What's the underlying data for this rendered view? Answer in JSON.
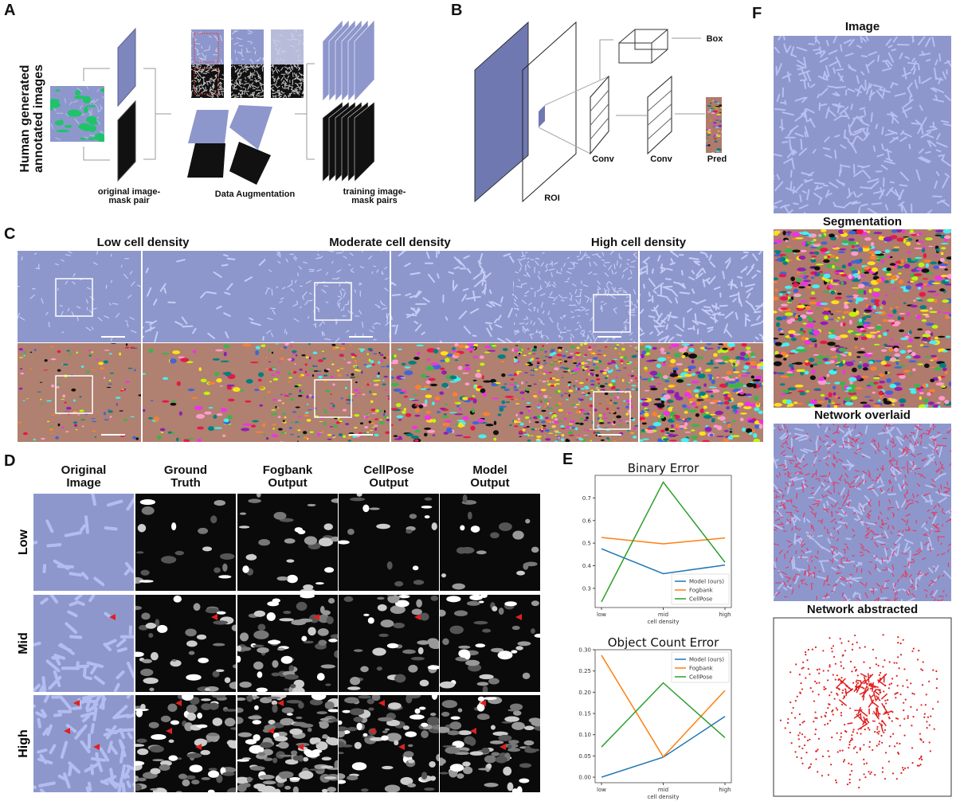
{
  "panels": {
    "A": {
      "label": "A",
      "side_title": "Human generated annotated images",
      "original": "original image-mask pair",
      "augmentation": "Data Augmentation",
      "training": "training image-mask pairs"
    },
    "B": {
      "label": "B",
      "roi": "ROI",
      "conv1": "Conv",
      "conv2": "Conv",
      "pred": "Pred",
      "box": "Box"
    },
    "C": {
      "label": "C",
      "titles": [
        "Low cell density",
        "Moderate cell density",
        "High cell density"
      ]
    },
    "D": {
      "label": "D",
      "columns": [
        "Original Image",
        "Ground Truth",
        "Fogbank Output",
        "CellPose Output",
        "Model Output"
      ],
      "rows": [
        "Low",
        "Mid",
        "High"
      ]
    },
    "E": {
      "label": "E"
    },
    "F": {
      "label": "F",
      "titles": [
        "Image",
        "Segmentation",
        "Network overlaid",
        "Network abstracted"
      ]
    }
  },
  "colors": {
    "cell_image": "#8e97cc",
    "mask_bg": "#b08070",
    "model": "#1f77b4",
    "fogbank": "#ff7f0e",
    "cellpose": "#2ca02c",
    "annotation": "#1fc46a",
    "marker": "#e02020"
  },
  "chart_data": [
    {
      "type": "line",
      "title": "Binary Error",
      "xlabel": "cell density",
      "ylabel": "",
      "categories": [
        "low",
        "mid",
        "high"
      ],
      "yticks": [
        0.3,
        0.4,
        0.5,
        0.6,
        0.7
      ],
      "ylim": [
        0.215,
        0.8
      ],
      "legend": "bottom-right",
      "grid": false,
      "series": [
        {
          "name": "Model (ours)",
          "values": [
            0.475,
            0.365,
            0.403
          ]
        },
        {
          "name": "Fogbank",
          "values": [
            0.525,
            0.497,
            0.523
          ]
        },
        {
          "name": "CellPose",
          "values": [
            0.24,
            0.77,
            0.415
          ]
        }
      ]
    },
    {
      "type": "line",
      "title": "Object Count Error",
      "xlabel": "cell density",
      "ylabel": "",
      "categories": [
        "low",
        "mid",
        "high"
      ],
      "yticks": [
        0.0,
        0.05,
        0.1,
        0.15,
        0.2,
        0.25,
        0.3
      ],
      "ytick_labels": [
        "0.00",
        "0.05",
        "0.10",
        "0.15",
        "0.20",
        "0.25",
        "0.30"
      ],
      "ylim": [
        -0.013,
        0.3
      ],
      "legend": "top-right",
      "grid": false,
      "series": [
        {
          "name": "Model (ours)",
          "values": [
            0.0,
            0.047,
            0.143
          ]
        },
        {
          "name": "Fogbank",
          "values": [
            0.287,
            0.048,
            0.204
          ]
        },
        {
          "name": "CellPose",
          "values": [
            0.071,
            0.222,
            0.093
          ]
        }
      ]
    }
  ]
}
